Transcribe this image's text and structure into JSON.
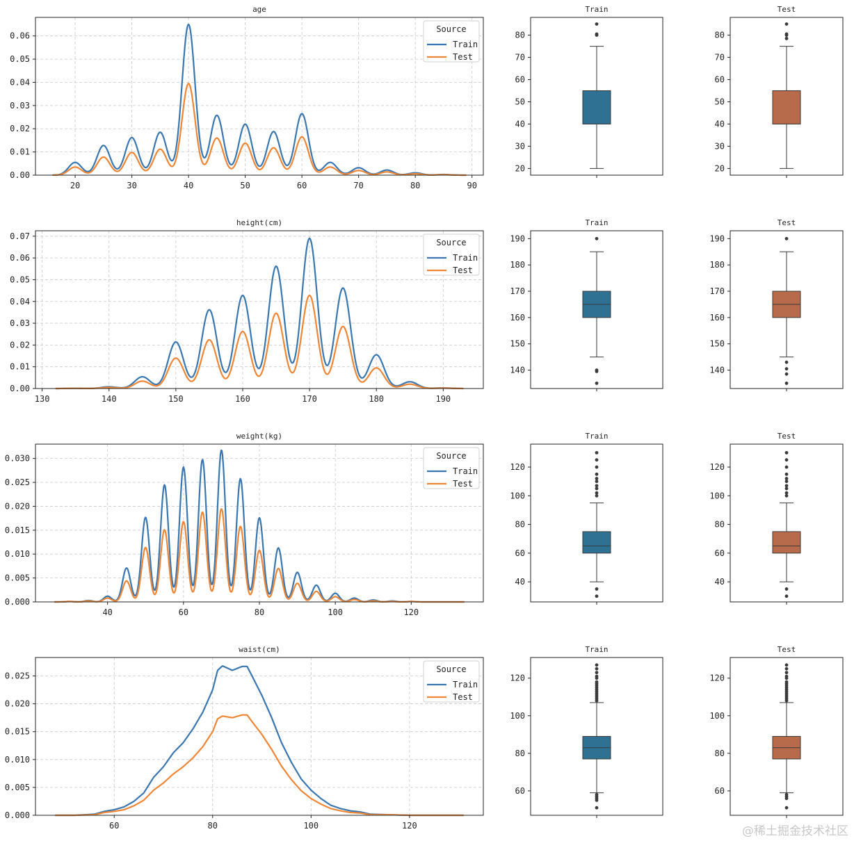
{
  "watermark": "@稀土掘金技术社区",
  "legend": {
    "title": "Source",
    "entries": [
      "Train",
      "Test"
    ],
    "colors": [
      "#3a76af",
      "#ef8636"
    ]
  },
  "box_colors": {
    "Train": "#2e7193",
    "Test": "#b76b4a"
  },
  "chart_data": [
    {
      "type": "line",
      "title": "age",
      "xlabel": "",
      "ylabel": "",
      "xlim": [
        13,
        92
      ],
      "ylim": [
        0,
        0.068
      ],
      "xticks": [
        20,
        30,
        40,
        50,
        60,
        70,
        80,
        90
      ],
      "yticks": [
        0.0,
        0.01,
        0.02,
        0.03,
        0.04,
        0.05,
        0.06
      ],
      "ytick_labels": [
        "0.00",
        "0.01",
        "0.02",
        "0.03",
        "0.04",
        "0.05",
        "0.06"
      ],
      "x_range": [
        16,
        89
      ],
      "grid": true,
      "legend_position": "upper right",
      "series": [
        {
          "name": "Train",
          "kind": "peaks",
          "bandwidth": 1.15,
          "peaks": [
            [
              20,
              0.0055
            ],
            [
              25,
              0.0128
            ],
            [
              30,
              0.0162
            ],
            [
              35,
              0.0185
            ],
            [
              40,
              0.065
            ],
            [
              45,
              0.0258
            ],
            [
              50,
              0.022
            ],
            [
              55,
              0.0188
            ],
            [
              60,
              0.0265
            ],
            [
              65,
              0.0055
            ],
            [
              70,
              0.0032
            ],
            [
              75,
              0.0022
            ],
            [
              80,
              0.001
            ],
            [
              85,
              0.0003
            ]
          ]
        },
        {
          "name": "Test",
          "kind": "peaks",
          "bandwidth": 1.15,
          "peaks": [
            [
              20,
              0.0035
            ],
            [
              25,
              0.0078
            ],
            [
              30,
              0.0098
            ],
            [
              35,
              0.0112
            ],
            [
              40,
              0.0395
            ],
            [
              45,
              0.016
            ],
            [
              50,
              0.0138
            ],
            [
              55,
              0.0118
            ],
            [
              60,
              0.0165
            ],
            [
              65,
              0.0035
            ],
            [
              70,
              0.002
            ],
            [
              75,
              0.0014
            ],
            [
              80,
              0.0006
            ],
            [
              85,
              0.0002
            ]
          ]
        }
      ]
    },
    {
      "type": "box",
      "title": "Train",
      "series": "Train",
      "ylim": [
        17,
        88
      ],
      "yticks": [
        20,
        30,
        40,
        50,
        60,
        70,
        80
      ],
      "q1": 40,
      "median": 40,
      "q3": 55,
      "whisker_low": 20,
      "whisker_high": 75,
      "outliers": [
        80,
        80.5,
        85
      ]
    },
    {
      "type": "box",
      "title": "Test",
      "series": "Test",
      "ylim": [
        17,
        88
      ],
      "yticks": [
        20,
        30,
        40,
        50,
        60,
        70,
        80
      ],
      "q1": 40,
      "median": 40,
      "q3": 55,
      "whisker_low": 20,
      "whisker_high": 75,
      "outliers": [
        78.5,
        80,
        80.5,
        85
      ]
    },
    {
      "type": "line",
      "title": "height(cm)",
      "xlabel": "",
      "ylabel": "",
      "xlim": [
        129,
        196
      ],
      "ylim": [
        0,
        0.0725
      ],
      "xticks": [
        130,
        140,
        150,
        160,
        170,
        180,
        190
      ],
      "yticks": [
        0.0,
        0.01,
        0.02,
        0.03,
        0.04,
        0.05,
        0.06,
        0.07
      ],
      "ytick_labels": [
        "0.00",
        "0.01",
        "0.02",
        "0.03",
        "0.04",
        "0.05",
        "0.06",
        "0.07"
      ],
      "x_range": [
        132,
        193
      ],
      "grid": true,
      "legend_position": "upper right",
      "series": [
        {
          "name": "Train",
          "kind": "peaks",
          "bandwidth": 1.15,
          "peaks": [
            [
              135,
              0.0001
            ],
            [
              140,
              0.0008
            ],
            [
              145,
              0.0054
            ],
            [
              150,
              0.0214
            ],
            [
              155,
              0.0362
            ],
            [
              160,
              0.0428
            ],
            [
              165,
              0.0562
            ],
            [
              170,
              0.069
            ],
            [
              175,
              0.0462
            ],
            [
              180,
              0.0155
            ],
            [
              185,
              0.0031
            ],
            [
              190,
              0.0003
            ]
          ]
        },
        {
          "name": "Test",
          "kind": "peaks",
          "bandwidth": 1.15,
          "peaks": [
            [
              135,
              0.0001
            ],
            [
              140,
              0.0005
            ],
            [
              145,
              0.0034
            ],
            [
              150,
              0.014
            ],
            [
              155,
              0.0224
            ],
            [
              160,
              0.0262
            ],
            [
              165,
              0.0346
            ],
            [
              170,
              0.0428
            ],
            [
              175,
              0.0285
            ],
            [
              180,
              0.0095
            ],
            [
              185,
              0.002
            ],
            [
              190,
              0.0002
            ]
          ]
        }
      ]
    },
    {
      "type": "box",
      "title": "Train",
      "series": "Train",
      "ylim": [
        133,
        193
      ],
      "yticks": [
        140,
        150,
        160,
        170,
        180,
        190
      ],
      "q1": 160,
      "median": 165,
      "q3": 170,
      "whisker_low": 145,
      "whisker_high": 185,
      "outliers": [
        140,
        139.5,
        135,
        190
      ]
    },
    {
      "type": "box",
      "title": "Test",
      "series": "Test",
      "ylim": [
        133,
        193
      ],
      "yticks": [
        140,
        150,
        160,
        170,
        180,
        190
      ],
      "q1": 160,
      "median": 165,
      "q3": 170,
      "whisker_low": 145,
      "whisker_high": 185,
      "outliers": [
        143,
        140.5,
        138.5,
        135,
        190
      ]
    },
    {
      "type": "line",
      "title": "weight(kg)",
      "xlabel": "",
      "ylabel": "",
      "xlim": [
        21,
        139
      ],
      "ylim": [
        0,
        0.033
      ],
      "xticks": [
        40,
        60,
        80,
        100,
        120
      ],
      "yticks": [
        0.0,
        0.005,
        0.01,
        0.015,
        0.02,
        0.025,
        0.03
      ],
      "ytick_labels": [
        "0.000",
        "0.005",
        "0.010",
        "0.015",
        "0.020",
        "0.025",
        "0.030"
      ],
      "x_range": [
        26,
        134
      ],
      "grid": true,
      "legend_position": "upper right",
      "series": [
        {
          "name": "Train",
          "kind": "peaks",
          "bandwidth": 1.05,
          "peaks": [
            [
              30,
              0.0001
            ],
            [
              35,
              0.0003
            ],
            [
              40,
              0.0012
            ],
            [
              45,
              0.0071
            ],
            [
              50,
              0.0177
            ],
            [
              55,
              0.0245
            ],
            [
              60,
              0.0282
            ],
            [
              65,
              0.0298
            ],
            [
              70,
              0.0318
            ],
            [
              75,
              0.0258
            ],
            [
              80,
              0.0176
            ],
            [
              85,
              0.0113
            ],
            [
              90,
              0.0062
            ],
            [
              95,
              0.0035
            ],
            [
              100,
              0.0018
            ],
            [
              105,
              0.0008
            ],
            [
              110,
              0.0004
            ],
            [
              115,
              0.0002
            ],
            [
              120,
              0.0001
            ]
          ]
        },
        {
          "name": "Test",
          "kind": "peaks",
          "bandwidth": 1.05,
          "peaks": [
            [
              30,
              0.0001
            ],
            [
              35,
              0.0002
            ],
            [
              40,
              0.0008
            ],
            [
              45,
              0.0044
            ],
            [
              50,
              0.0114
            ],
            [
              55,
              0.0151
            ],
            [
              60,
              0.0168
            ],
            [
              65,
              0.0188
            ],
            [
              70,
              0.0195
            ],
            [
              75,
              0.0158
            ],
            [
              80,
              0.0108
            ],
            [
              85,
              0.007
            ],
            [
              90,
              0.0039
            ],
            [
              95,
              0.0022
            ],
            [
              100,
              0.0011
            ],
            [
              105,
              0.0005
            ],
            [
              110,
              0.0002
            ],
            [
              115,
              0.0001
            ],
            [
              120,
              0.0001
            ]
          ]
        }
      ]
    },
    {
      "type": "box",
      "title": "Train",
      "series": "Train",
      "ylim": [
        26,
        136
      ],
      "yticks": [
        40,
        60,
        80,
        100,
        120
      ],
      "q1": 60,
      "median": 65,
      "q3": 75,
      "whisker_low": 40,
      "whisker_high": 95,
      "outliers": [
        35,
        30,
        100,
        102,
        105,
        107,
        110,
        112,
        115,
        120,
        125,
        130
      ]
    },
    {
      "type": "box",
      "title": "Test",
      "series": "Test",
      "ylim": [
        26,
        136
      ],
      "yticks": [
        40,
        60,
        80,
        100,
        120
      ],
      "q1": 60,
      "median": 65,
      "q3": 75,
      "whisker_low": 40,
      "whisker_high": 95,
      "outliers": [
        35,
        30,
        100,
        102,
        105,
        107,
        110,
        112,
        115,
        120,
        125,
        130
      ]
    },
    {
      "type": "line",
      "title": "waist(cm)",
      "xlabel": "",
      "ylabel": "",
      "xlim": [
        44,
        135
      ],
      "ylim": [
        0,
        0.0283
      ],
      "xticks": [
        60,
        80,
        100,
        120
      ],
      "yticks": [
        0.0,
        0.005,
        0.01,
        0.015,
        0.02,
        0.025
      ],
      "ytick_labels": [
        "0.000",
        "0.005",
        "0.010",
        "0.015",
        "0.020",
        "0.025"
      ],
      "x_range": [
        48,
        131
      ],
      "grid": true,
      "legend_position": "upper right",
      "series": [
        {
          "name": "Train",
          "kind": "points",
          "points": [
            [
              48,
              0
            ],
            [
              52,
              0
            ],
            [
              56,
              0.0002
            ],
            [
              58,
              0.0007
            ],
            [
              60,
              0.001
            ],
            [
              62,
              0.0015
            ],
            [
              64,
              0.0025
            ],
            [
              66,
              0.004
            ],
            [
              68,
              0.0068
            ],
            [
              70,
              0.0087
            ],
            [
              72,
              0.0112
            ],
            [
              74,
              0.013
            ],
            [
              76,
              0.0155
            ],
            [
              78,
              0.0185
            ],
            [
              80,
              0.0225
            ],
            [
              81,
              0.026
            ],
            [
              82,
              0.0268
            ],
            [
              84,
              0.026
            ],
            [
              86,
              0.0267
            ],
            [
              87,
              0.0267
            ],
            [
              88,
              0.025
            ],
            [
              90,
              0.0215
            ],
            [
              92,
              0.0175
            ],
            [
              94,
              0.013
            ],
            [
              96,
              0.0095
            ],
            [
              98,
              0.0065
            ],
            [
              100,
              0.0045
            ],
            [
              102,
              0.003
            ],
            [
              104,
              0.0018
            ],
            [
              106,
              0.0012
            ],
            [
              108,
              0.0008
            ],
            [
              110,
              0.0006
            ],
            [
              112,
              0.0002
            ],
            [
              116,
              0.0001
            ],
            [
              120,
              0
            ],
            [
              131,
              0
            ]
          ]
        },
        {
          "name": "Test",
          "kind": "points",
          "points": [
            [
              48,
              0
            ],
            [
              52,
              0
            ],
            [
              56,
              0.0001
            ],
            [
              58,
              0.0005
            ],
            [
              60,
              0.0007
            ],
            [
              62,
              0.001
            ],
            [
              64,
              0.0017
            ],
            [
              66,
              0.0027
            ],
            [
              68,
              0.0045
            ],
            [
              70,
              0.0058
            ],
            [
              72,
              0.0074
            ],
            [
              74,
              0.0087
            ],
            [
              76,
              0.0103
            ],
            [
              78,
              0.0123
            ],
            [
              80,
              0.015
            ],
            [
              81,
              0.0173
            ],
            [
              82,
              0.0178
            ],
            [
              84,
              0.0175
            ],
            [
              86,
              0.018
            ],
            [
              87,
              0.018
            ],
            [
              88,
              0.0168
            ],
            [
              90,
              0.0145
            ],
            [
              92,
              0.0118
            ],
            [
              94,
              0.0088
            ],
            [
              96,
              0.0064
            ],
            [
              98,
              0.0044
            ],
            [
              100,
              0.003
            ],
            [
              102,
              0.002
            ],
            [
              104,
              0.0012
            ],
            [
              106,
              0.0008
            ],
            [
              108,
              0.0005
            ],
            [
              110,
              0.0004
            ],
            [
              112,
              0.0001
            ],
            [
              116,
              0.0001
            ],
            [
              120,
              0
            ],
            [
              131,
              0
            ]
          ]
        }
      ]
    },
    {
      "type": "box",
      "title": "Train",
      "series": "Train",
      "ylim": [
        47,
        131
      ],
      "yticks": [
        60,
        80,
        100,
        120
      ],
      "q1": 77,
      "median": 83,
      "q3": 89,
      "whisker_low": 59,
      "whisker_high": 107,
      "outliers": [
        58,
        57,
        56,
        55,
        51,
        108,
        109,
        110,
        111,
        112,
        113,
        114,
        115,
        116,
        117,
        118,
        120,
        121,
        123,
        125,
        127
      ]
    },
    {
      "type": "box",
      "title": "Test",
      "series": "Test",
      "ylim": [
        47,
        131
      ],
      "yticks": [
        60,
        80,
        100,
        120
      ],
      "q1": 77,
      "median": 83,
      "q3": 89,
      "whisker_low": 59,
      "whisker_high": 107,
      "outliers": [
        58,
        57,
        56,
        51,
        108,
        109,
        110,
        111,
        112,
        113,
        114,
        115,
        116,
        117,
        118,
        120,
        121,
        123,
        125,
        127
      ]
    }
  ]
}
